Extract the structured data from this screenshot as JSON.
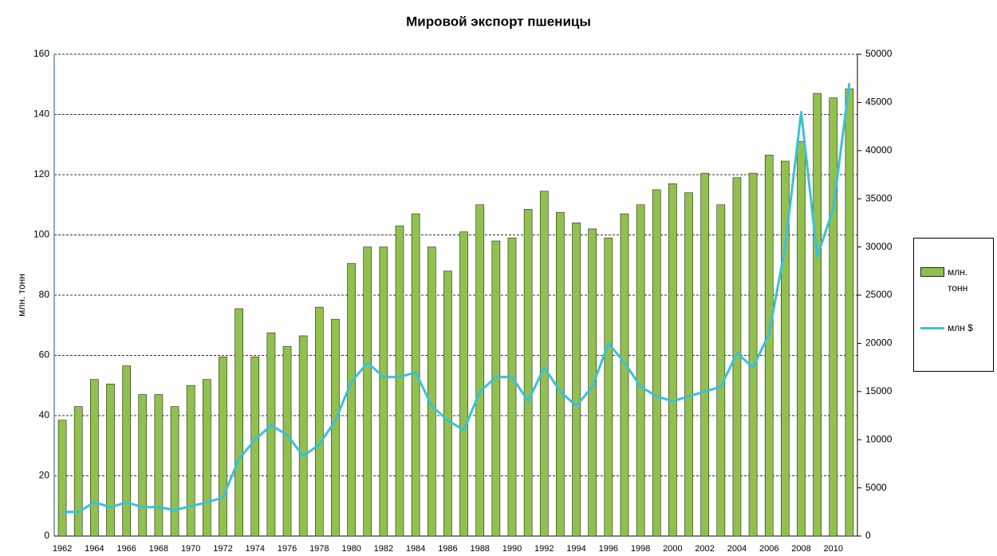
{
  "chart_data": {
    "type": "bar-line",
    "title": "Мировой экспорт пшеницы",
    "y_label": "млн. тонн",
    "categories": [
      "1962",
      null,
      "1964",
      null,
      "1966",
      null,
      "1968",
      null,
      "1970",
      null,
      "1972",
      null,
      "1974",
      null,
      "1976",
      null,
      "1978",
      null,
      "1980",
      null,
      "1982",
      null,
      "1984",
      null,
      "1986",
      null,
      "1988",
      null,
      "1990",
      null,
      "1992",
      null,
      "1994",
      null,
      "1996",
      null,
      "1998",
      null,
      "2000",
      null,
      "2002",
      null,
      "2004",
      null,
      "2006",
      null,
      "2008",
      null,
      "2010",
      null
    ],
    "series": [
      {
        "name": "млн. тонн",
        "type": "bar",
        "color": "#92c04f",
        "axis": "y",
        "values": [
          38.5,
          43,
          52,
          50.5,
          56.5,
          47,
          47,
          43,
          50,
          52,
          59.5,
          75.5,
          59.5,
          67.5,
          63,
          66.5,
          76,
          72,
          90.5,
          96,
          96,
          103,
          107,
          96,
          88,
          101,
          110,
          98,
          99,
          108.5,
          114.5,
          107.5,
          104,
          102,
          99,
          107,
          110,
          115,
          117,
          114,
          120.5,
          110,
          119,
          120.5,
          126.5,
          124.5,
          131,
          147,
          145.5,
          148.5
        ]
      },
      {
        "name": "млн $",
        "type": "line",
        "color": "#3cc0d8",
        "axis": "y2",
        "values": [
          2500,
          2500,
          3500,
          3000,
          3500,
          3000,
          3000,
          2700,
          3100,
          3500,
          4000,
          8000,
          10000,
          11500,
          10500,
          8300,
          9500,
          12000,
          16000,
          18000,
          16500,
          16500,
          17000,
          13500,
          12000,
          11000,
          15000,
          16500,
          16500,
          14000,
          17500,
          15000,
          13500,
          15500,
          20000,
          18000,
          15500,
          14500,
          14000,
          14500,
          15000,
          15500,
          19000,
          17500,
          21000,
          30000,
          44000,
          29000,
          34000,
          47000
        ]
      }
    ],
    "ylim": [
      0,
      160
    ],
    "yticks": [
      0,
      20,
      40,
      60,
      80,
      100,
      120,
      140,
      160
    ],
    "y2lim": [
      0,
      50000
    ],
    "y2ticks": [
      0,
      5000,
      10000,
      15000,
      20000,
      25000,
      30000,
      35000,
      40000,
      45000,
      50000
    ],
    "grid": true,
    "legend": "right"
  }
}
